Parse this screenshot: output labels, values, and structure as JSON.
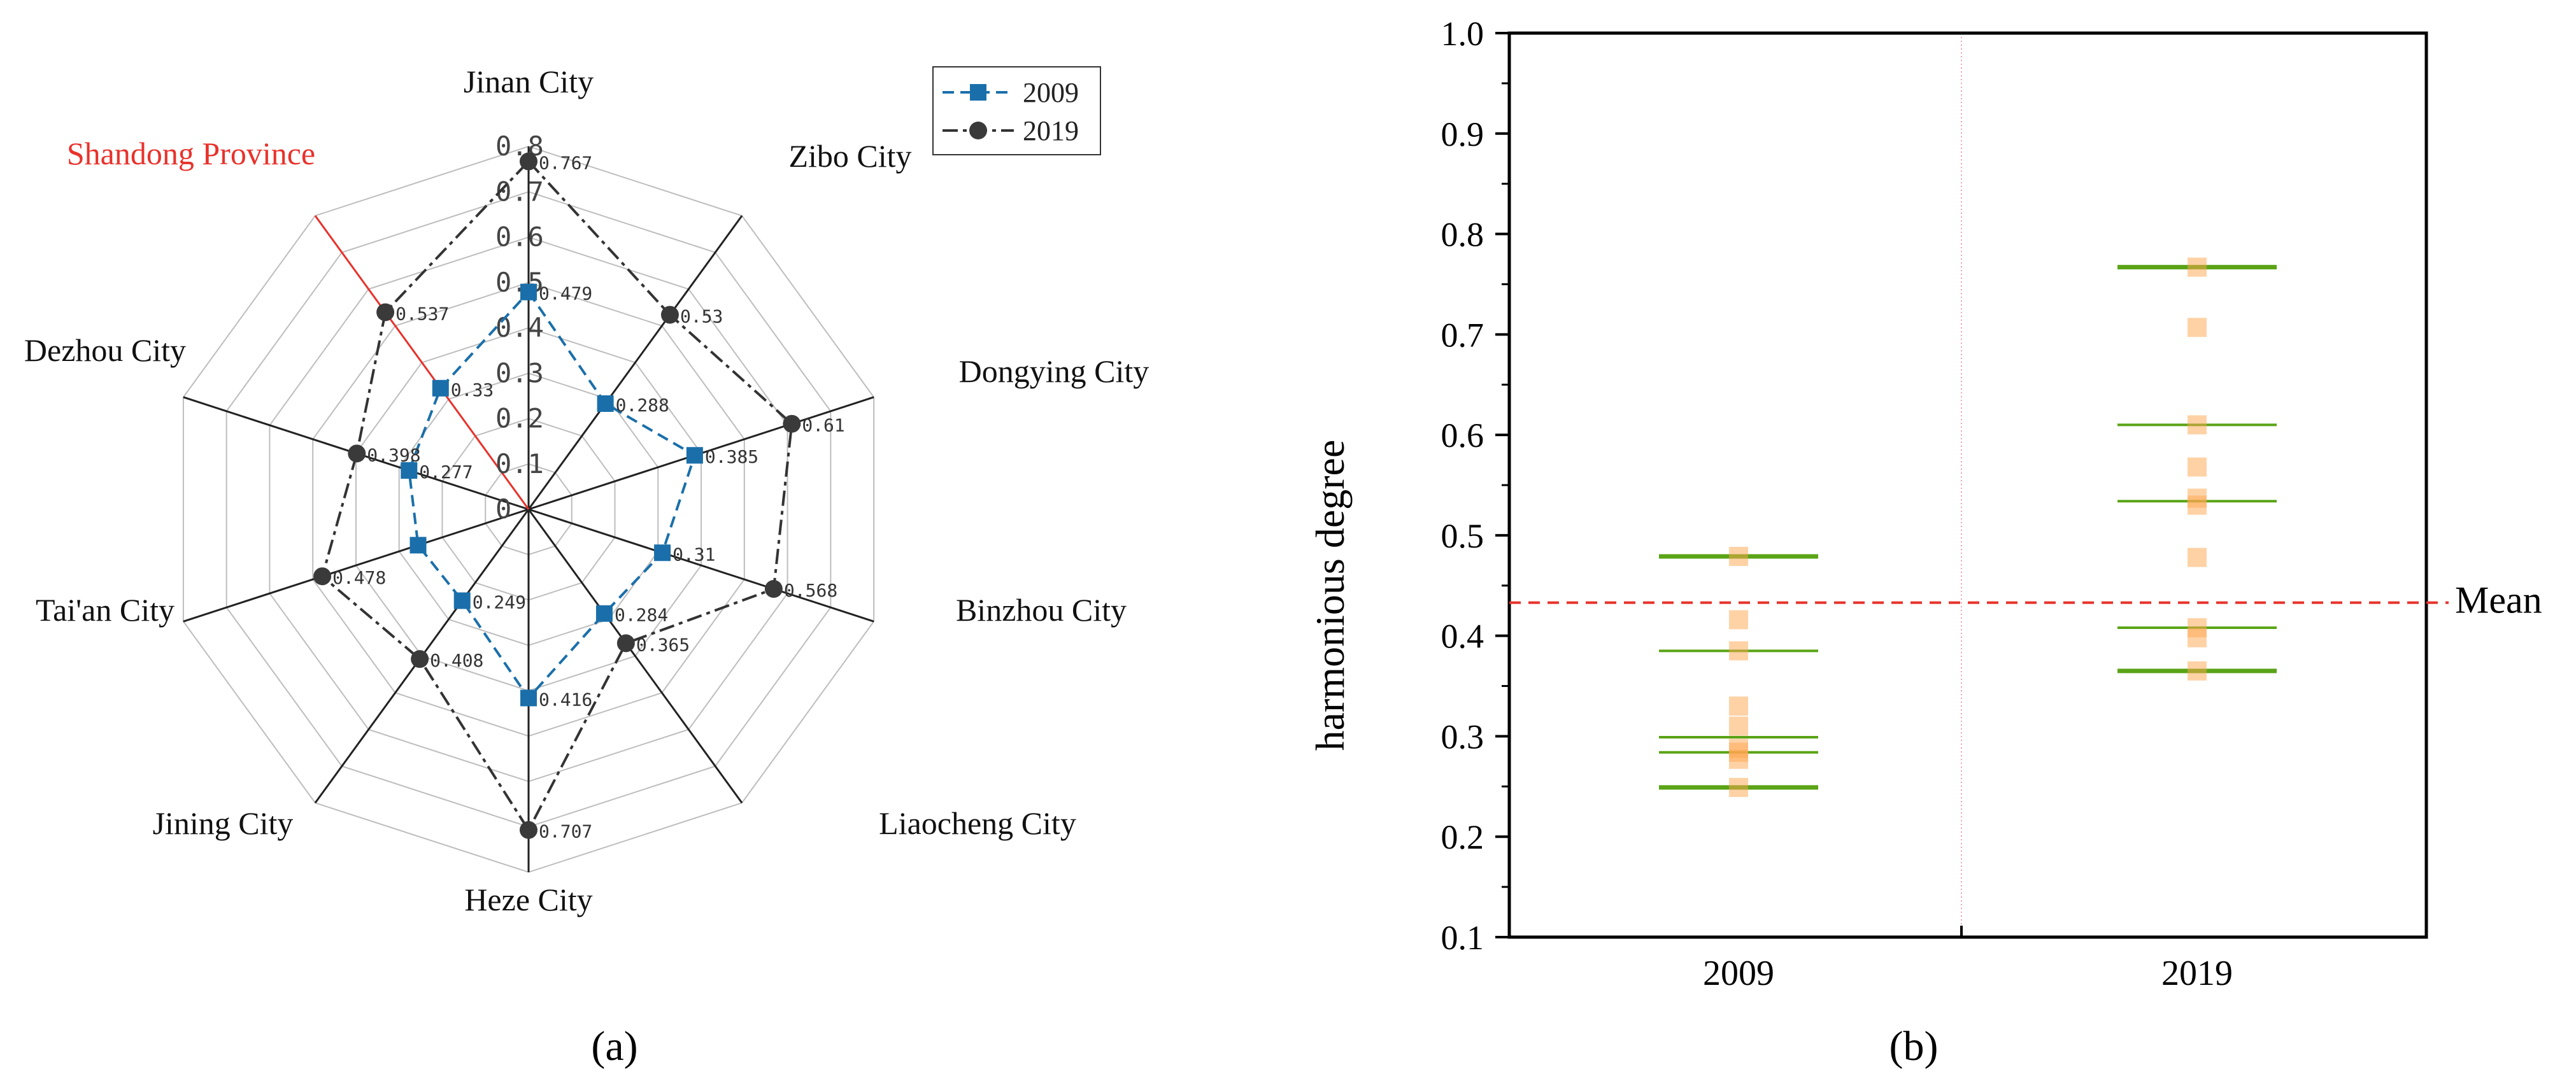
{
  "chart_data": [
    {
      "type": "radar",
      "panel_label": "(a)",
      "region_label": "Shandong Province",
      "axes": [
        "Jinan City",
        "Zibo City",
        "Dongying City",
        "Binzhou City",
        "Liaocheng City",
        "Heze City",
        "Jining City",
        "Tai'an City",
        "Dezhou City",
        "Shandong Province"
      ],
      "rlim": [
        0,
        0.8
      ],
      "rticks": [
        "0",
        "0.1",
        "0.2",
        "0.3",
        "0.4",
        "0.5",
        "0.6",
        "0.7",
        "0.8"
      ],
      "series": [
        {
          "name": "2009",
          "values": [
            0.479,
            0.288,
            0.385,
            0.31,
            0.284,
            0.416,
            0.249,
            0.256,
            0.277,
            0.33
          ],
          "labels": [
            "0.479",
            "0.288",
            "0.385",
            "0.31",
            "0.284",
            "0.416",
            "0.249",
            "",
            "0.277",
            "0.33"
          ]
        },
        {
          "name": "2019",
          "values": [
            0.767,
            0.53,
            0.61,
            0.568,
            0.365,
            0.707,
            0.408,
            0.478,
            0.398,
            0.537
          ],
          "labels": [
            "0.767",
            "0.53",
            "0.61",
            "0.568",
            "0.365",
            "0.707",
            "0.408",
            "0.478",
            "0.398",
            "0.537"
          ]
        }
      ],
      "legend": [
        "2009",
        "2019"
      ]
    },
    {
      "type": "scatter",
      "panel_label": "(b)",
      "ylabel": "harmonious degree",
      "ylim": [
        0.1,
        1.0
      ],
      "yticks": [
        "0.1",
        "0.2",
        "0.3",
        "0.4",
        "0.5",
        "0.6",
        "0.7",
        "0.8",
        "0.9",
        "1.0"
      ],
      "categories": [
        "2009",
        "2019"
      ],
      "points": {
        "2009": [
          0.479,
          0.416,
          0.385,
          0.33,
          0.31,
          0.288,
          0.284,
          0.277,
          0.249
        ],
        "2019": [
          0.767,
          0.707,
          0.61,
          0.568,
          0.537,
          0.53,
          0.478,
          0.408,
          0.398,
          0.365
        ]
      },
      "lines": {
        "2009": {
          "max": 0.479,
          "upper": 0.385,
          "q3": 0.299,
          "q1": 0.284,
          "min": 0.249
        },
        "2019": {
          "max": 0.767,
          "upper": 0.61,
          "q3": 0.534,
          "q1": 0.408,
          "min": 0.365
        }
      },
      "mean": 0.433,
      "mean_label": "Mean"
    }
  ]
}
